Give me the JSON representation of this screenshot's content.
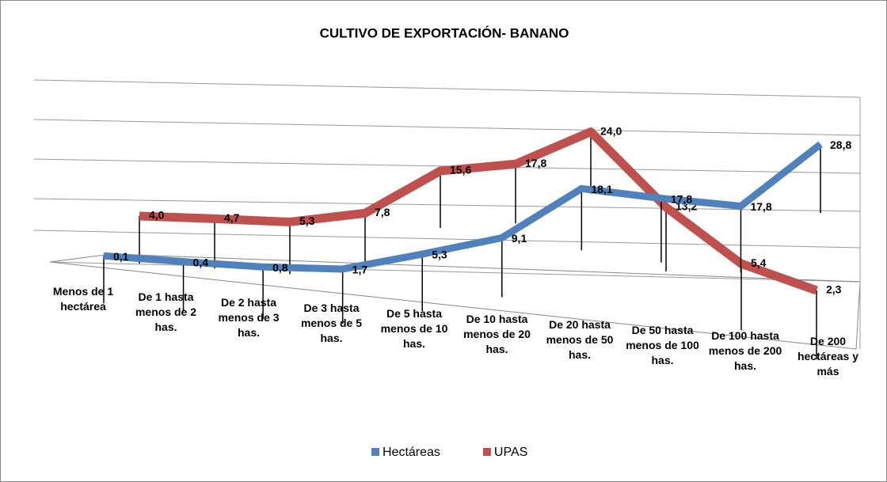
{
  "chart_data": {
    "type": "line3d",
    "title": "CULTIVO  DE EXPORTACIÓN- BANANO",
    "categories": [
      "Menos de 1 hectárea",
      "De 1 hasta menos de 2 has.",
      "De 2 hasta menos de 3 has.",
      "De 3 hasta menos de 5 has.",
      "De 5 hasta menos de 10 has.",
      "De 10 hasta menos de 20 has.",
      "De 20 hasta menos de 50 has.",
      "De 50 hasta menos de 100 has.",
      "De 100 hasta menos de 200 has.",
      "De 200 hectáreas y más"
    ],
    "series": [
      {
        "name": "Hectáreas",
        "color": "#4f81bd",
        "values": [
          0.1,
          0.4,
          0.8,
          1.7,
          5.3,
          9.1,
          18.1,
          17.8,
          17.8,
          28.8
        ],
        "value_labels": [
          "0,1",
          "0,4",
          "0,8",
          "1,7",
          "5,3",
          "9,1",
          "18,1",
          "17,8",
          "17,8",
          "28,8"
        ]
      },
      {
        "name": "UPAS",
        "color": "#c0504d",
        "values": [
          4.0,
          4.7,
          5.3,
          7.8,
          15.6,
          17.8,
          24.0,
          13.2,
          5.4,
          2.3
        ],
        "value_labels": [
          "4,0",
          "4,7",
          "5,3",
          "7,8",
          "15,6",
          "17,8",
          "24,0",
          "13,2",
          "5,4",
          "2,3"
        ]
      }
    ],
    "legend": "bottom"
  }
}
